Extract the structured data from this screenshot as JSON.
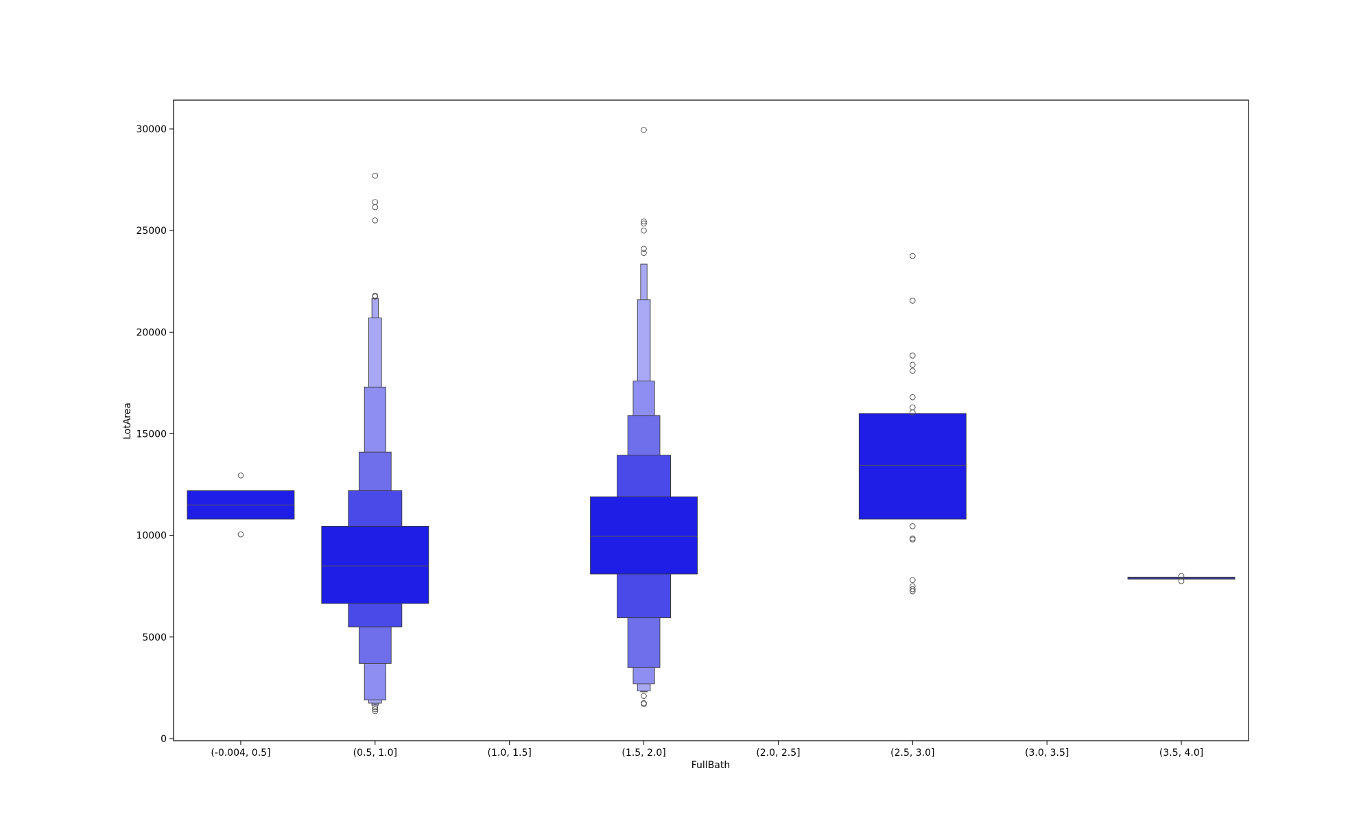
{
  "chart_data": {
    "type": "boxen",
    "xlabel": "FullBath",
    "ylabel": "LotArea",
    "categories": [
      "(-0.004, 0.5]",
      "(0.5, 1.0]",
      "(1.0, 1.5]",
      "(1.5, 2.0]",
      "(2.0, 2.5]",
      "(2.5, 3.0]",
      "(3.0, 3.5]",
      "(3.5, 4.0]"
    ],
    "ylim": [
      0,
      31500
    ],
    "yticks": [
      0,
      5000,
      10000,
      15000,
      20000,
      25000,
      30000
    ],
    "ytick_labels": [
      "0",
      "5000",
      "10000",
      "15000",
      "20000",
      "25000",
      "30000"
    ],
    "colors": [
      "#1e1ee6",
      "#4a4ae8",
      "#6f6fec",
      "#8e8ef0",
      "#a8a8f4",
      "#2a2ab0"
    ],
    "groups": [
      {
        "category": "(-0.004, 0.5]",
        "median": 11500,
        "levels": [
          {
            "low": 10800,
            "high": 12200
          }
        ],
        "outliers": [
          12950,
          10050
        ]
      },
      {
        "category": "(0.5, 1.0]",
        "median": 8500,
        "levels": [
          {
            "low": 6650,
            "high": 10450
          },
          {
            "low": 5500,
            "high": 12200
          },
          {
            "low": 3700,
            "high": 14100
          },
          {
            "low": 1900,
            "high": 17300
          },
          {
            "low": 1750,
            "high": 20700
          },
          {
            "low": 1650,
            "high": 21650
          }
        ],
        "outliers": [
          27700,
          26400,
          26150,
          25500,
          21800,
          21750,
          1550,
          1450,
          1350
        ]
      },
      {
        "category": "(1.5, 2.0]",
        "median": 9950,
        "levels": [
          {
            "low": 8100,
            "high": 11900
          },
          {
            "low": 5950,
            "high": 13950
          },
          {
            "low": 3500,
            "high": 15900
          },
          {
            "low": 2700,
            "high": 17600
          },
          {
            "low": 2350,
            "high": 21600
          },
          {
            "low": 2300,
            "high": 23350
          }
        ],
        "outliers": [
          29950,
          25450,
          25350,
          25000,
          24100,
          23900,
          2100,
          1750,
          1700
        ]
      },
      {
        "category": "(2.5, 3.0]",
        "median": 13450,
        "levels": [
          {
            "low": 10800,
            "high": 16000
          }
        ],
        "outliers": [
          23750,
          21550,
          18850,
          18400,
          18100,
          16800,
          16300,
          16050,
          10450,
          9850,
          9800,
          7800,
          7500,
          7350,
          7250
        ]
      },
      {
        "category": "(3.5, 4.0]",
        "median": 7900,
        "levels": [
          {
            "low": 7850,
            "high": 7950
          }
        ],
        "outliers": [
          8000,
          7750
        ]
      }
    ]
  }
}
